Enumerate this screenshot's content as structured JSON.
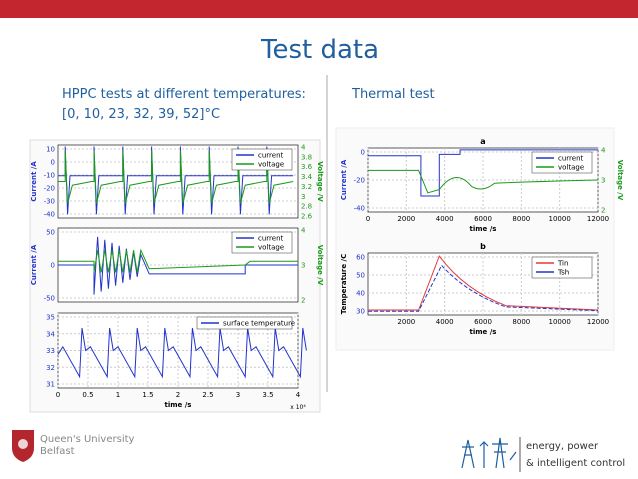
{
  "header": {
    "title": "Test data"
  },
  "left": {
    "caption": [
      "HPPC tests at different temperatures:",
      "[0, 10, 23, 32, 39, 52]°C"
    ],
    "panels": [
      {
        "yticks": [
          "10",
          "0",
          "-10",
          "-20",
          "-30",
          "-40"
        ],
        "y2ticks": [
          "4",
          "3.8",
          "3.6",
          "3.4",
          "3.2",
          "3",
          "2.8",
          "2.6"
        ],
        "ylabel": "Current /A",
        "y2label": "Voltage /V",
        "legend": [
          "current",
          "voltage"
        ]
      },
      {
        "yticks": [
          "50",
          "0",
          "-50"
        ],
        "y2ticks": [
          "4",
          "3",
          "2"
        ],
        "ylabel": "Current /A",
        "y2label": "Voltage /V",
        "legend": [
          "current",
          "voltage"
        ]
      },
      {
        "yticks": [
          "35",
          "34",
          "33",
          "32",
          "31"
        ],
        "xticks": [
          "0",
          "0.5",
          "1",
          "1.5",
          "2",
          "2.5",
          "3",
          "3.5",
          "4"
        ],
        "xlabel": "time /s",
        "xscale": "x 10⁴",
        "legend": [
          "surface temperature"
        ]
      }
    ]
  },
  "right": {
    "caption": "Thermal test",
    "panels": [
      {
        "title": "a",
        "yticks": [
          "0",
          "-20",
          "-40"
        ],
        "y2ticks": [
          "4",
          "3",
          "2"
        ],
        "xticks": [
          "0",
          "2000",
          "4000",
          "6000",
          "8000",
          "10000",
          "12000"
        ],
        "ylabel": "Current /A",
        "y2label": "Voltage /V",
        "xlabel": "time /s",
        "legend": [
          "current",
          "voltage"
        ]
      },
      {
        "title": "b",
        "yticks": [
          "60",
          "50",
          "40",
          "30"
        ],
        "xticks": [
          "2000",
          "4000",
          "6000",
          "8000",
          "10000",
          "12000"
        ],
        "ylabel": "Temperature /C",
        "xlabel": "time /s",
        "legend": [
          "Tin",
          "Tsh"
        ]
      }
    ]
  },
  "footer": {
    "logo": [
      "Queen's University",
      "Belfast"
    ],
    "tagline": [
      "energy, power",
      "& intelligent control"
    ]
  }
}
